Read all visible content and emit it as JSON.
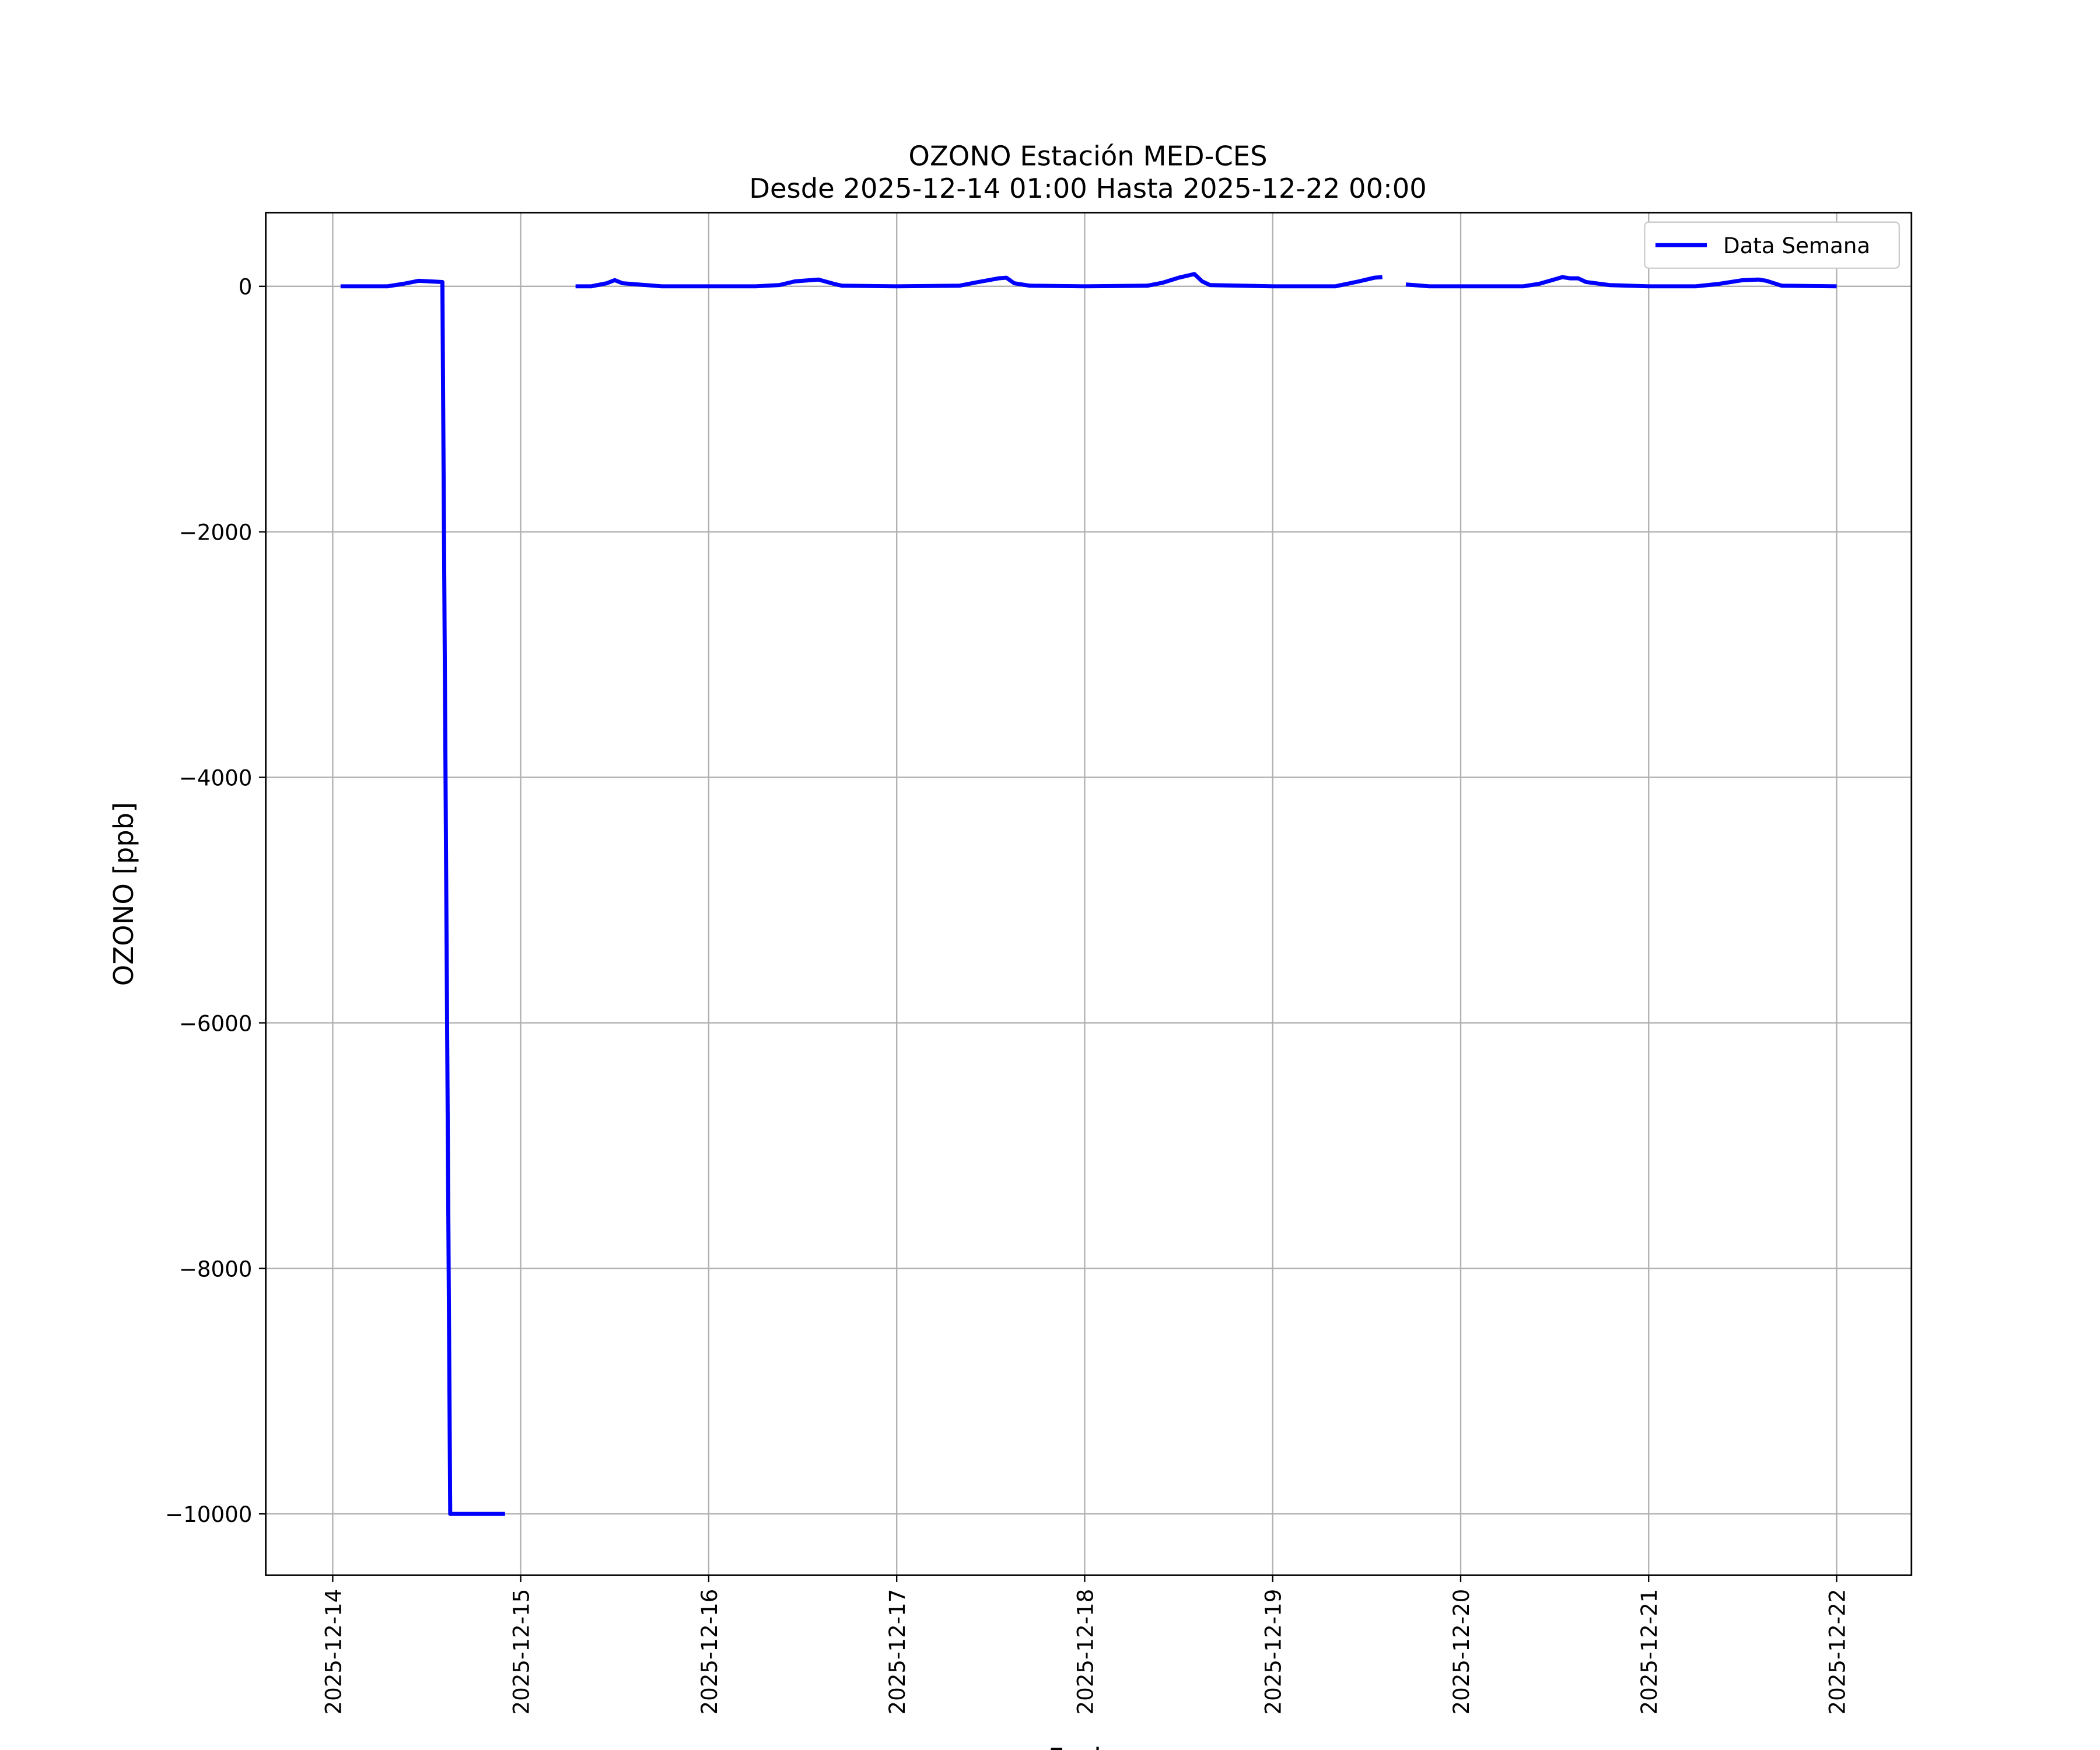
{
  "chart_data": {
    "type": "line",
    "title": "OZONO Estación MED-CES",
    "subtitle": "Desde 2025-12-14 01:00 Hasta 2025-12-22 00:00",
    "x_label": "Fecha",
    "y_label": "OZONO [ppb]",
    "x": [
      "2025-12-14 01:00",
      "2025-12-14 04:00",
      "2025-12-14 07:00",
      "2025-12-14 09:00",
      "2025-12-14 11:00",
      "2025-12-14 14:00",
      "2025-12-14 15:00",
      "2025-12-14 22:00",
      "2025-12-15 03:00",
      "2025-12-15 07:00",
      "2025-12-15 09:00",
      "2025-12-15 11:00",
      "2025-12-15 12:00",
      "2025-12-15 13:00",
      "2025-12-15 18:00",
      "2025-12-16 00:00",
      "2025-12-16 06:00",
      "2025-12-16 09:00",
      "2025-12-16 11:00",
      "2025-12-16 14:00",
      "2025-12-16 16:00",
      "2025-12-16 17:00",
      "2025-12-17 00:00",
      "2025-12-17 08:00",
      "2025-12-17 10:00",
      "2025-12-17 13:00",
      "2025-12-17 14:00",
      "2025-12-17 15:00",
      "2025-12-17 17:00",
      "2025-12-18 00:00",
      "2025-12-18 08:00",
      "2025-12-18 10:00",
      "2025-12-18 12:00",
      "2025-12-18 14:00",
      "2025-12-18 15:00",
      "2025-12-18 16:00",
      "2025-12-19 00:00",
      "2025-12-19 08:00",
      "2025-12-19 11:00",
      "2025-12-19 13:00",
      "2025-12-19 14:00",
      "2025-12-19 15:00",
      "2025-12-19 17:00",
      "2025-12-19 20:00",
      "2025-12-20 00:00",
      "2025-12-20 08:00",
      "2025-12-20 10:00",
      "2025-12-20 13:00",
      "2025-12-20 14:00",
      "2025-12-20 15:00",
      "2025-12-20 16:00",
      "2025-12-20 19:00",
      "2025-12-21 00:00",
      "2025-12-21 06:00",
      "2025-12-21 09:00",
      "2025-12-21 12:00",
      "2025-12-21 14:00",
      "2025-12-21 15:00",
      "2025-12-21 17:00",
      "2025-12-22 00:00"
    ],
    "series": [
      {
        "name": "Data Semana",
        "color": "#0000ff",
        "values": [
          0,
          0,
          0,
          20,
          45,
          35,
          -10000,
          -10000,
          null,
          0,
          0,
          25,
          50,
          25,
          0,
          0,
          0,
          10,
          40,
          55,
          20,
          5,
          0,
          5,
          30,
          65,
          70,
          25,
          5,
          0,
          5,
          30,
          70,
          100,
          40,
          10,
          0,
          0,
          40,
          70,
          75,
          null,
          15,
          0,
          0,
          0,
          20,
          75,
          65,
          65,
          35,
          10,
          0,
          0,
          20,
          50,
          55,
          45,
          5,
          0
        ]
      }
    ],
    "xlim": [
      "2025-12-13 15:27",
      "2025-12-22 09:33"
    ],
    "xticks": [
      "2025-12-14",
      "2025-12-15",
      "2025-12-16",
      "2025-12-17",
      "2025-12-18",
      "2025-12-19",
      "2025-12-20",
      "2025-12-21",
      "2025-12-22"
    ],
    "ylim": [
      -10500,
      600
    ],
    "yticks": [
      {
        "value": -10000,
        "label": "−10000"
      },
      {
        "value": -8000,
        "label": "−8000"
      },
      {
        "value": -6000,
        "label": "−6000"
      },
      {
        "value": -4000,
        "label": "−4000"
      },
      {
        "value": -2000,
        "label": "−2000"
      },
      0
    ],
    "grid": true,
    "legend": "upper right"
  }
}
